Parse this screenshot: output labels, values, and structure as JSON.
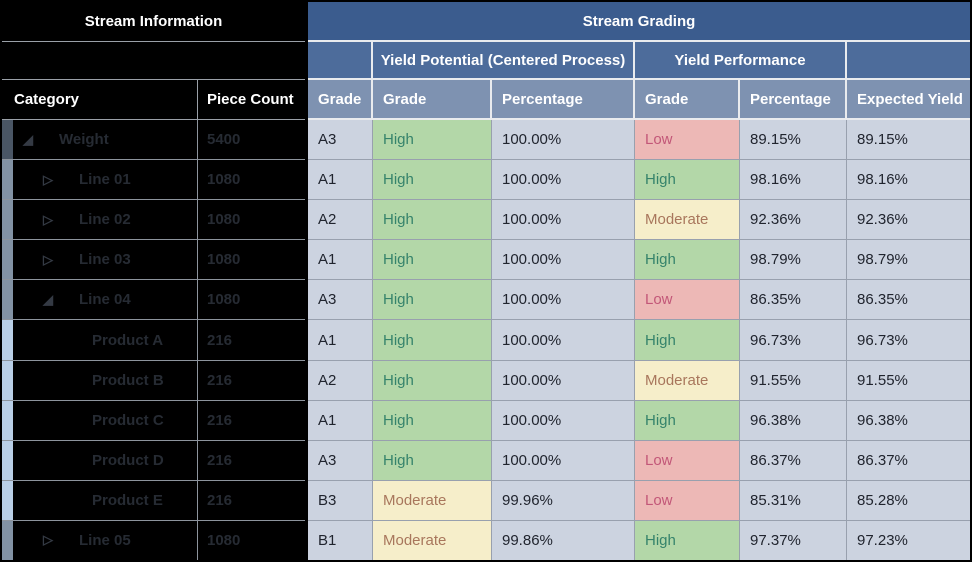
{
  "left_panel": {
    "title": "Stream Information",
    "columns": {
      "category": "Category",
      "piece_count": "Piece Count"
    },
    "rows": [
      {
        "label": "Weight",
        "count": "5400",
        "level": 0,
        "toggle": "expanded"
      },
      {
        "label": "Line 01",
        "count": "1080",
        "level": 1,
        "toggle": "collapsed"
      },
      {
        "label": "Line 02",
        "count": "1080",
        "level": 1,
        "toggle": "collapsed"
      },
      {
        "label": "Line 03",
        "count": "1080",
        "level": 1,
        "toggle": "collapsed"
      },
      {
        "label": "Line 04",
        "count": "1080",
        "level": 1,
        "toggle": "expanded"
      },
      {
        "label": "Product A",
        "count": "216",
        "level": 2,
        "toggle": "none"
      },
      {
        "label": "Product B",
        "count": "216",
        "level": 2,
        "toggle": "none"
      },
      {
        "label": "Product C",
        "count": "216",
        "level": 2,
        "toggle": "none"
      },
      {
        "label": "Product D",
        "count": "216",
        "level": 2,
        "toggle": "none"
      },
      {
        "label": "Product E",
        "count": "216",
        "level": 2,
        "toggle": "none"
      },
      {
        "label": "Line 05",
        "count": "1080",
        "level": 1,
        "toggle": "collapsed"
      }
    ]
  },
  "right_panel": {
    "title": "Stream Grading",
    "group_headers": {
      "yield_potential": "Yield Potential (Centered Process)",
      "yield_performance": "Yield Performance"
    },
    "columns": [
      "Grade",
      "Grade",
      "Percentage",
      "Grade",
      "Percentage",
      "Expected Yield"
    ],
    "rows": [
      {
        "grade": "A3",
        "yp_grade": "High",
        "yp_pct": "100.00%",
        "perf_grade": "Low",
        "perf_pct": "89.15%",
        "expected": "89.15%"
      },
      {
        "grade": "A1",
        "yp_grade": "High",
        "yp_pct": "100.00%",
        "perf_grade": "High",
        "perf_pct": "98.16%",
        "expected": "98.16%"
      },
      {
        "grade": "A2",
        "yp_grade": "High",
        "yp_pct": "100.00%",
        "perf_grade": "Moderate",
        "perf_pct": "92.36%",
        "expected": "92.36%"
      },
      {
        "grade": "A1",
        "yp_grade": "High",
        "yp_pct": "100.00%",
        "perf_grade": "High",
        "perf_pct": "98.79%",
        "expected": "98.79%"
      },
      {
        "grade": "A3",
        "yp_grade": "High",
        "yp_pct": "100.00%",
        "perf_grade": "Low",
        "perf_pct": "86.35%",
        "expected": "86.35%"
      },
      {
        "grade": "A1",
        "yp_grade": "High",
        "yp_pct": "100.00%",
        "perf_grade": "High",
        "perf_pct": "96.73%",
        "expected": "96.73%"
      },
      {
        "grade": "A2",
        "yp_grade": "High",
        "yp_pct": "100.00%",
        "perf_grade": "Moderate",
        "perf_pct": "91.55%",
        "expected": "91.55%"
      },
      {
        "grade": "A1",
        "yp_grade": "High",
        "yp_pct": "100.00%",
        "perf_grade": "High",
        "perf_pct": "96.38%",
        "expected": "96.38%"
      },
      {
        "grade": "A3",
        "yp_grade": "High",
        "yp_pct": "100.00%",
        "perf_grade": "Low",
        "perf_pct": "86.37%",
        "expected": "86.37%"
      },
      {
        "grade": "B3",
        "yp_grade": "Moderate",
        "yp_pct": "99.96%",
        "perf_grade": "Low",
        "perf_pct": "85.31%",
        "expected": "85.28%"
      },
      {
        "grade": "B1",
        "yp_grade": "Moderate",
        "yp_pct": "99.86%",
        "perf_grade": "High",
        "perf_pct": "97.37%",
        "expected": "97.23%"
      }
    ]
  },
  "icons": {
    "expanded": "◢",
    "collapsed": "▷"
  },
  "colors": {
    "header_dark_blue": "#3b5c8e",
    "header_mid_blue": "#4d6c9b",
    "header_light_blue": "#7e92b1",
    "row_bg": "#ccd3e0",
    "grade_high_bg": "#b3d7a8",
    "grade_high_text": "#35836b",
    "grade_moderate_bg": "#f6eeca",
    "grade_moderate_text": "#a8765c",
    "grade_low_bg": "#edb8b6",
    "grade_low_text": "#c25778",
    "level0_strip": "#4a5665",
    "level1_strip": "#8292a4",
    "level2_strip": "#b9cfe7"
  }
}
